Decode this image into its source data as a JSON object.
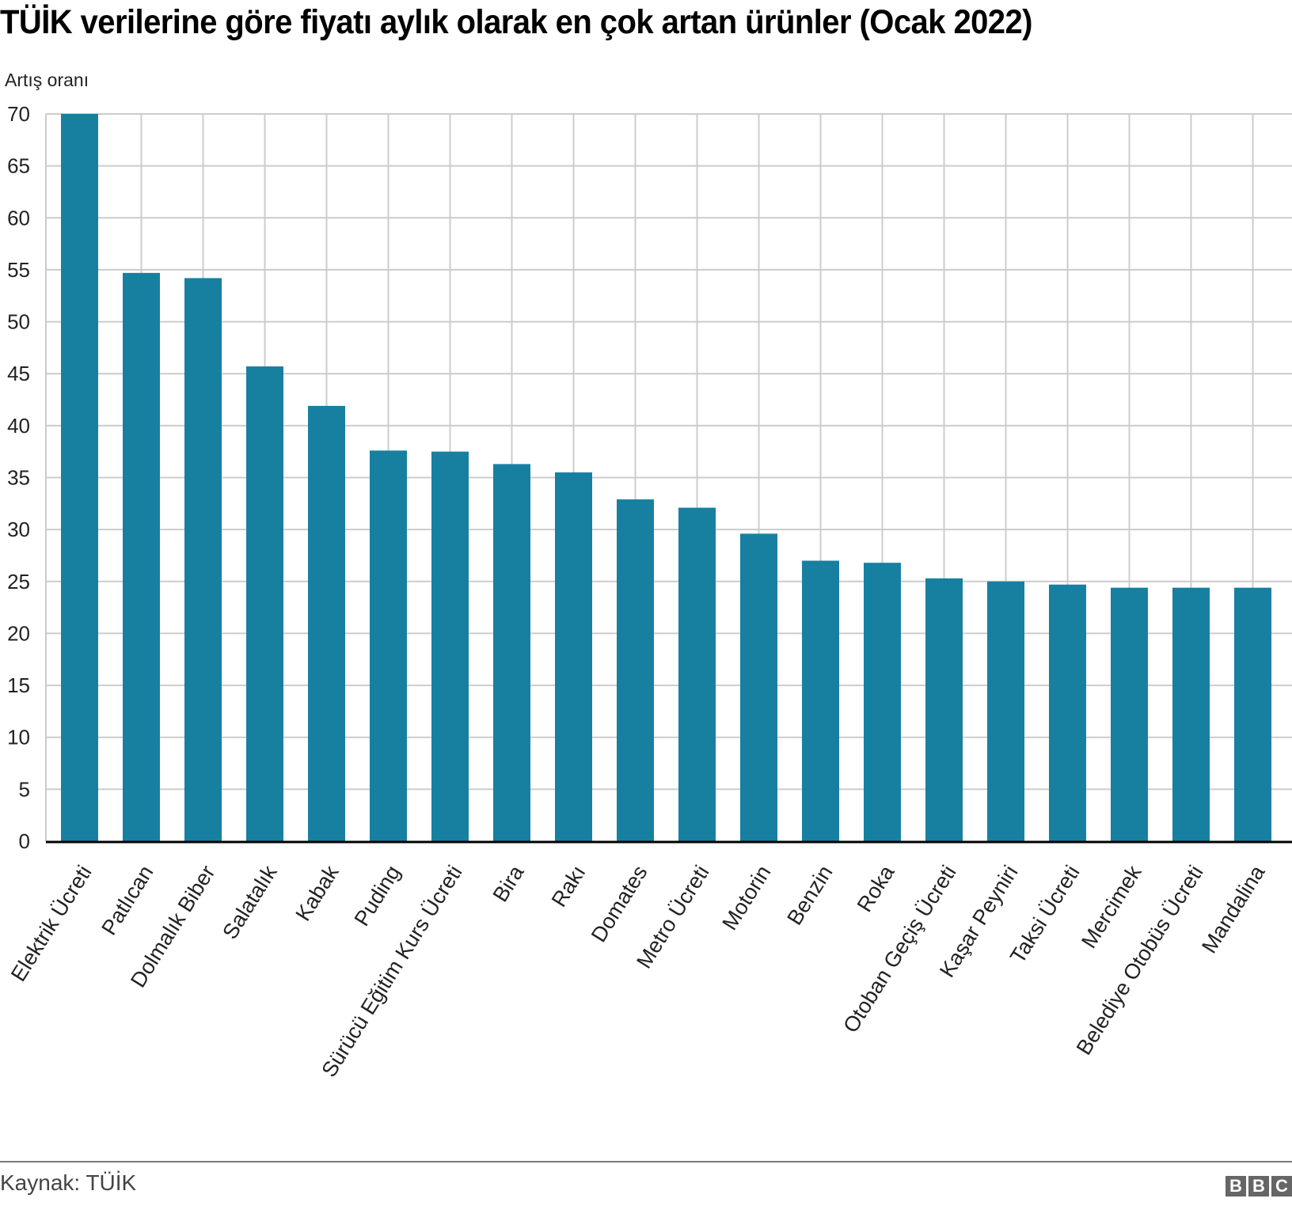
{
  "chart_data": {
    "type": "bar",
    "title": "TÜİK verilerine göre fiyatı aylık olarak en çok artan ürünler (Ocak 2022)",
    "xlabel": "",
    "ylabel": "Artış oranı",
    "ylim": [
      0,
      70
    ],
    "yticks": [
      0,
      5,
      10,
      15,
      20,
      25,
      30,
      35,
      40,
      45,
      50,
      55,
      60,
      65,
      70
    ],
    "grid": true,
    "bar_color": "#1780a1",
    "categories": [
      "Elektrik Ücreti",
      "Patlıcan",
      "Dolmalık Biber",
      "Salatalık",
      "Kabak",
      "Puding",
      "Sürücü Eğitim Kurs Ücreti",
      "Bira",
      "Rakı",
      "Domates",
      "Metro Ücreti",
      "Motorin",
      "Benzin",
      "Roka",
      "Otoban Geçiş Ücreti",
      "Kaşar Peyniri",
      "Taksi Ücreti",
      "Mercimek",
      "Belediye Otobüs Ücreti",
      "Mandalina"
    ],
    "values": [
      70.0,
      54.7,
      54.2,
      45.7,
      41.9,
      37.6,
      37.5,
      36.3,
      35.5,
      32.9,
      32.1,
      29.6,
      27.0,
      26.8,
      25.3,
      25.0,
      24.7,
      24.4,
      24.4,
      24.4
    ]
  },
  "header": {
    "title": "TÜİK verilerine göre fiyatı aylık olarak en çok artan ürünler (Ocak 2022)",
    "y_axis_label": "Artış oranı"
  },
  "footer": {
    "source": "Kaynak: TÜİK",
    "logo_letters": [
      "B",
      "B",
      "C"
    ]
  }
}
